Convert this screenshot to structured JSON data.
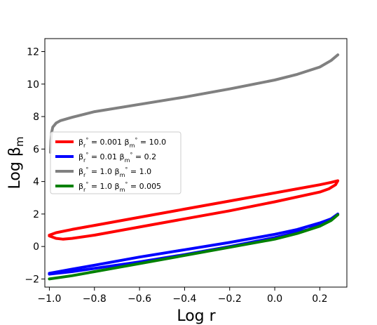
{
  "chart_data": {
    "type": "line",
    "title": "",
    "xlabel": "Log r",
    "ylabel": "Log β",
    "ylabel_subscript": "m",
    "xlim": [
      -1.02,
      0.32
    ],
    "ylim": [
      -2.5,
      12.8
    ],
    "x_ticks": [
      -1.0,
      -0.8,
      -0.6,
      -0.4,
      -0.2,
      0.0,
      0.2
    ],
    "x_tick_labels": [
      "−1.0",
      "−0.8",
      "−0.6",
      "−0.4",
      "−0.2",
      "0.0",
      "0.2"
    ],
    "y_ticks": [
      -2,
      0,
      2,
      4,
      6,
      8,
      10,
      12
    ],
    "y_tick_labels": [
      "−2",
      "0",
      "2",
      "4",
      "6",
      "8",
      "10",
      "12"
    ],
    "grid": false,
    "legend_position": "center-left",
    "series": [
      {
        "name": "β_r° = 0.001 β_m° = 10.0",
        "legend": {
          "r_value": "0.001",
          "m_value": "10.0"
        },
        "color": "#ff0000",
        "points": [
          [
            -1.0,
            0.7
          ],
          [
            -0.97,
            0.85
          ],
          [
            -0.9,
            1.05
          ],
          [
            -0.8,
            1.3
          ],
          [
            -0.6,
            1.8
          ],
          [
            -0.4,
            2.3
          ],
          [
            -0.2,
            2.8
          ],
          [
            0.0,
            3.3
          ],
          [
            0.1,
            3.55
          ],
          [
            0.2,
            3.8
          ],
          [
            0.25,
            3.95
          ],
          [
            0.28,
            4.05
          ],
          [
            0.27,
            3.8
          ],
          [
            0.24,
            3.55
          ],
          [
            0.2,
            3.35
          ],
          [
            0.0,
            2.75
          ],
          [
            -0.2,
            2.2
          ],
          [
            -0.4,
            1.7
          ],
          [
            -0.6,
            1.2
          ],
          [
            -0.8,
            0.7
          ],
          [
            -0.9,
            0.5
          ],
          [
            -0.94,
            0.45
          ],
          [
            -0.97,
            0.5
          ],
          [
            -1.0,
            0.65
          ]
        ]
      },
      {
        "name": "β_r° = 0.01 β_m° = 0.2",
        "legend": {
          "r_value": "0.01",
          "m_value": "0.2"
        },
        "color": "#0000ff",
        "points": [
          [
            -1.0,
            -1.65
          ],
          [
            -0.9,
            -1.4
          ],
          [
            -0.8,
            -1.15
          ],
          [
            -0.6,
            -0.65
          ],
          [
            -0.4,
            -0.2
          ],
          [
            -0.2,
            0.25
          ],
          [
            0.0,
            0.75
          ],
          [
            0.1,
            1.05
          ],
          [
            0.2,
            1.45
          ],
          [
            0.25,
            1.7
          ],
          [
            0.28,
            2.0
          ],
          [
            0.26,
            1.75
          ],
          [
            0.22,
            1.45
          ],
          [
            0.15,
            1.05
          ],
          [
            0.0,
            0.55
          ],
          [
            -0.2,
            0.0
          ],
          [
            -0.4,
            -0.5
          ],
          [
            -0.6,
            -0.95
          ],
          [
            -0.8,
            -1.35
          ],
          [
            -0.9,
            -1.55
          ],
          [
            -1.0,
            -1.7
          ]
        ]
      },
      {
        "name": "β_r° = 1.0 β_m° = 1.0",
        "legend": {
          "r_value": "1.0",
          "m_value": "1.0"
        },
        "color": "#808080",
        "points": [
          [
            -0.995,
            5.8
          ],
          [
            -0.993,
            6.5
          ],
          [
            -0.99,
            7.0
          ],
          [
            -0.985,
            7.35
          ],
          [
            -0.97,
            7.6
          ],
          [
            -0.95,
            7.75
          ],
          [
            -0.9,
            7.95
          ],
          [
            -0.8,
            8.3
          ],
          [
            -0.6,
            8.75
          ],
          [
            -0.4,
            9.2
          ],
          [
            -0.2,
            9.7
          ],
          [
            0.0,
            10.25
          ],
          [
            0.1,
            10.6
          ],
          [
            0.2,
            11.05
          ],
          [
            0.25,
            11.45
          ],
          [
            0.28,
            11.8
          ]
        ]
      },
      {
        "name": "β_r° = 1.0 β_m° = 0.005",
        "legend": {
          "r_value": "1.0",
          "m_value": "0.005"
        },
        "color": "#008000",
        "points": [
          [
            -1.0,
            -2.0
          ],
          [
            -0.9,
            -1.8
          ],
          [
            -0.8,
            -1.55
          ],
          [
            -0.6,
            -1.05
          ],
          [
            -0.4,
            -0.55
          ],
          [
            -0.2,
            -0.05
          ],
          [
            0.0,
            0.45
          ],
          [
            0.1,
            0.8
          ],
          [
            0.2,
            1.25
          ],
          [
            0.25,
            1.6
          ],
          [
            0.28,
            1.95
          ]
        ]
      }
    ]
  }
}
